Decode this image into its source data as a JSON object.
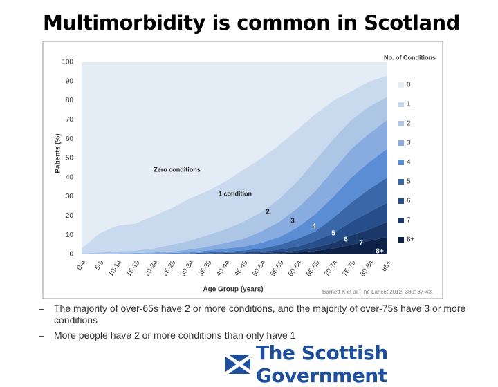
{
  "chart_data": {
    "type": "stacked_area",
    "title": "Multimorbidity is common in Scotland",
    "y_label": "Patients (%)",
    "x_label": "Age Group (years)",
    "legend_title": "No. of Conditions",
    "source": "Barnett K et al. The Lancet 2012; 380: 37-43.",
    "annotations": [
      "Zero conditions",
      "1 condition",
      "2",
      "3",
      "4",
      "5",
      "6",
      "7",
      "8+"
    ],
    "categories": [
      "0-4",
      "5-9",
      "10-14",
      "15-19",
      "20-24",
      "25-29",
      "30-34",
      "35-39",
      "40-44",
      "45-49",
      "50-54",
      "55-59",
      "60-64",
      "65-69",
      "70-74",
      "75-79",
      "80-84",
      "85+"
    ],
    "ylim": [
      0,
      100
    ],
    "yticks": [
      0,
      10,
      20,
      30,
      40,
      50,
      60,
      70,
      80,
      90,
      100
    ],
    "series": [
      {
        "name": "0",
        "color": "#e4ecf6",
        "values": [
          97,
          89,
          85,
          84,
          80,
          76,
          71,
          67,
          62,
          56,
          50,
          43,
          35,
          27,
          20,
          15,
          10,
          7
        ]
      },
      {
        "name": "1",
        "color": "#c9d9ee",
        "values": [
          2.5,
          10,
          13.5,
          14,
          17,
          19,
          22,
          23,
          25,
          27,
          28,
          28,
          27,
          24,
          20,
          15,
          13,
          11
        ]
      },
      {
        "name": "2",
        "color": "#adc6e6",
        "values": [
          0.5,
          0.7,
          1,
          1.3,
          2,
          3.5,
          4.5,
          6,
          7,
          9,
          10,
          12,
          14,
          16,
          16,
          15,
          14,
          12
        ]
      },
      {
        "name": "3",
        "color": "#88acdf",
        "values": [
          0,
          0.3,
          0.3,
          0.4,
          0.5,
          0.8,
          1.5,
          2,
          3,
          4,
          6,
          8,
          10,
          12,
          14,
          15,
          15,
          15
        ]
      },
      {
        "name": "4",
        "color": "#5b8dd4",
        "values": [
          0,
          0,
          0.2,
          0.3,
          0.3,
          0.4,
          0.5,
          1,
          1.5,
          2,
          3,
          4,
          6,
          9,
          11,
          13,
          14,
          15
        ]
      },
      {
        "name": "5",
        "color": "#3a67a8",
        "values": [
          0,
          0,
          0,
          0,
          0.2,
          0.2,
          0.3,
          0.6,
          0.8,
          1,
          1.5,
          2.5,
          4,
          5,
          8,
          10,
          12,
          13
        ]
      },
      {
        "name": "6",
        "color": "#254e8a",
        "values": [
          0,
          0,
          0,
          0,
          0,
          0.1,
          0.1,
          0.2,
          0.4,
          0.5,
          0.8,
          1.3,
          2,
          3.5,
          5,
          7,
          9,
          10
        ]
      },
      {
        "name": "7",
        "color": "#1a3868",
        "values": [
          0,
          0,
          0,
          0,
          0,
          0,
          0.1,
          0.1,
          0.2,
          0.3,
          0.4,
          0.7,
          1,
          1.7,
          3,
          5,
          6,
          8
        ]
      },
      {
        "name": "8+",
        "color": "#0e2147",
        "values": [
          0,
          0,
          0,
          0,
          0,
          0,
          0,
          0.1,
          0.1,
          0.2,
          0.3,
          0.5,
          1,
          1.8,
          3,
          5,
          7,
          9
        ]
      }
    ]
  },
  "bullets": [
    "The majority of over-65s have 2 or more conditions, and the majority of over-75s have 3 or more conditions",
    "More people have 2 or more conditions than only have 1"
  ],
  "logo": "The Scottish Government"
}
